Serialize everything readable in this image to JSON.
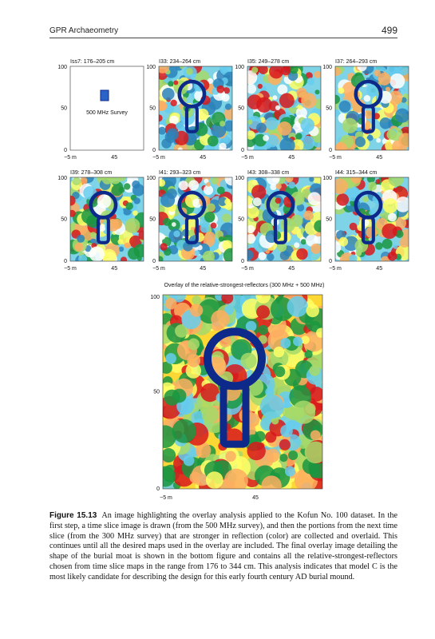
{
  "header": {
    "title": "GPR Archaeometry",
    "page": "499"
  },
  "panels": [
    {
      "title": "Iss7: 176–205 cm",
      "label": "500 MHz Survey",
      "yticks": [
        "100",
        "50",
        "0"
      ],
      "xticks": [
        "−5 m",
        "45"
      ]
    },
    {
      "title": "I33: 234–264 cm",
      "yticks": [
        "100",
        "50",
        "0"
      ],
      "xticks": [
        "−5 m",
        "45"
      ]
    },
    {
      "title": "I35: 249–278 cm",
      "yticks": [
        "100",
        "50",
        "0"
      ],
      "xticks": [
        "−5 m",
        "45"
      ]
    },
    {
      "title": "I37: 264–293 cm",
      "yticks": [
        "100",
        "50",
        "0"
      ],
      "xticks": [
        "−5 m",
        "45"
      ]
    },
    {
      "title": "I39: 278–308 cm",
      "yticks": [
        "100",
        "50",
        "0"
      ],
      "xticks": [
        "−5 m",
        "45"
      ]
    },
    {
      "title": "I41: 293–323 cm",
      "yticks": [
        "100",
        "50",
        "0"
      ],
      "xticks": [
        "−5 m",
        "45"
      ]
    },
    {
      "title": "I43: 308–338 cm",
      "yticks": [
        "100",
        "50",
        "0"
      ],
      "xticks": [
        "−5 m",
        "45"
      ]
    },
    {
      "title": "I44: 315–344 cm",
      "yticks": [
        "100",
        "50",
        "0"
      ],
      "xticks": [
        "−5 m",
        "45"
      ]
    }
  ],
  "overlay": {
    "title": "Overlay of the relative-strongest-reflectors (300 MHz + 500 MHz)",
    "yticks": [
      "100",
      "50",
      "0"
    ],
    "xticks": [
      "−5 m",
      "45"
    ]
  },
  "caption": {
    "label": "Figure 15.13",
    "text": "An image highlighting the overlay analysis applied to the Kofun No. 100 dataset. In the first step, a time slice image is drawn (from the 500 MHz survey), and then the portions from the next time slice (from the 300 MHz survey) that are stronger in reflection (color) are collected and overlaid. This continues until all the desired maps used in the overlay are included. The final overlay image detailing the shape of the burial moat is shown in the bottom figure and contains all the relative-strongest-reflectors chosen from time slice maps in the range from 176 to 344 cm. This analysis indicates that model C is the most likely candidate for describing the design for this early fourth century AD burial mound."
  }
}
